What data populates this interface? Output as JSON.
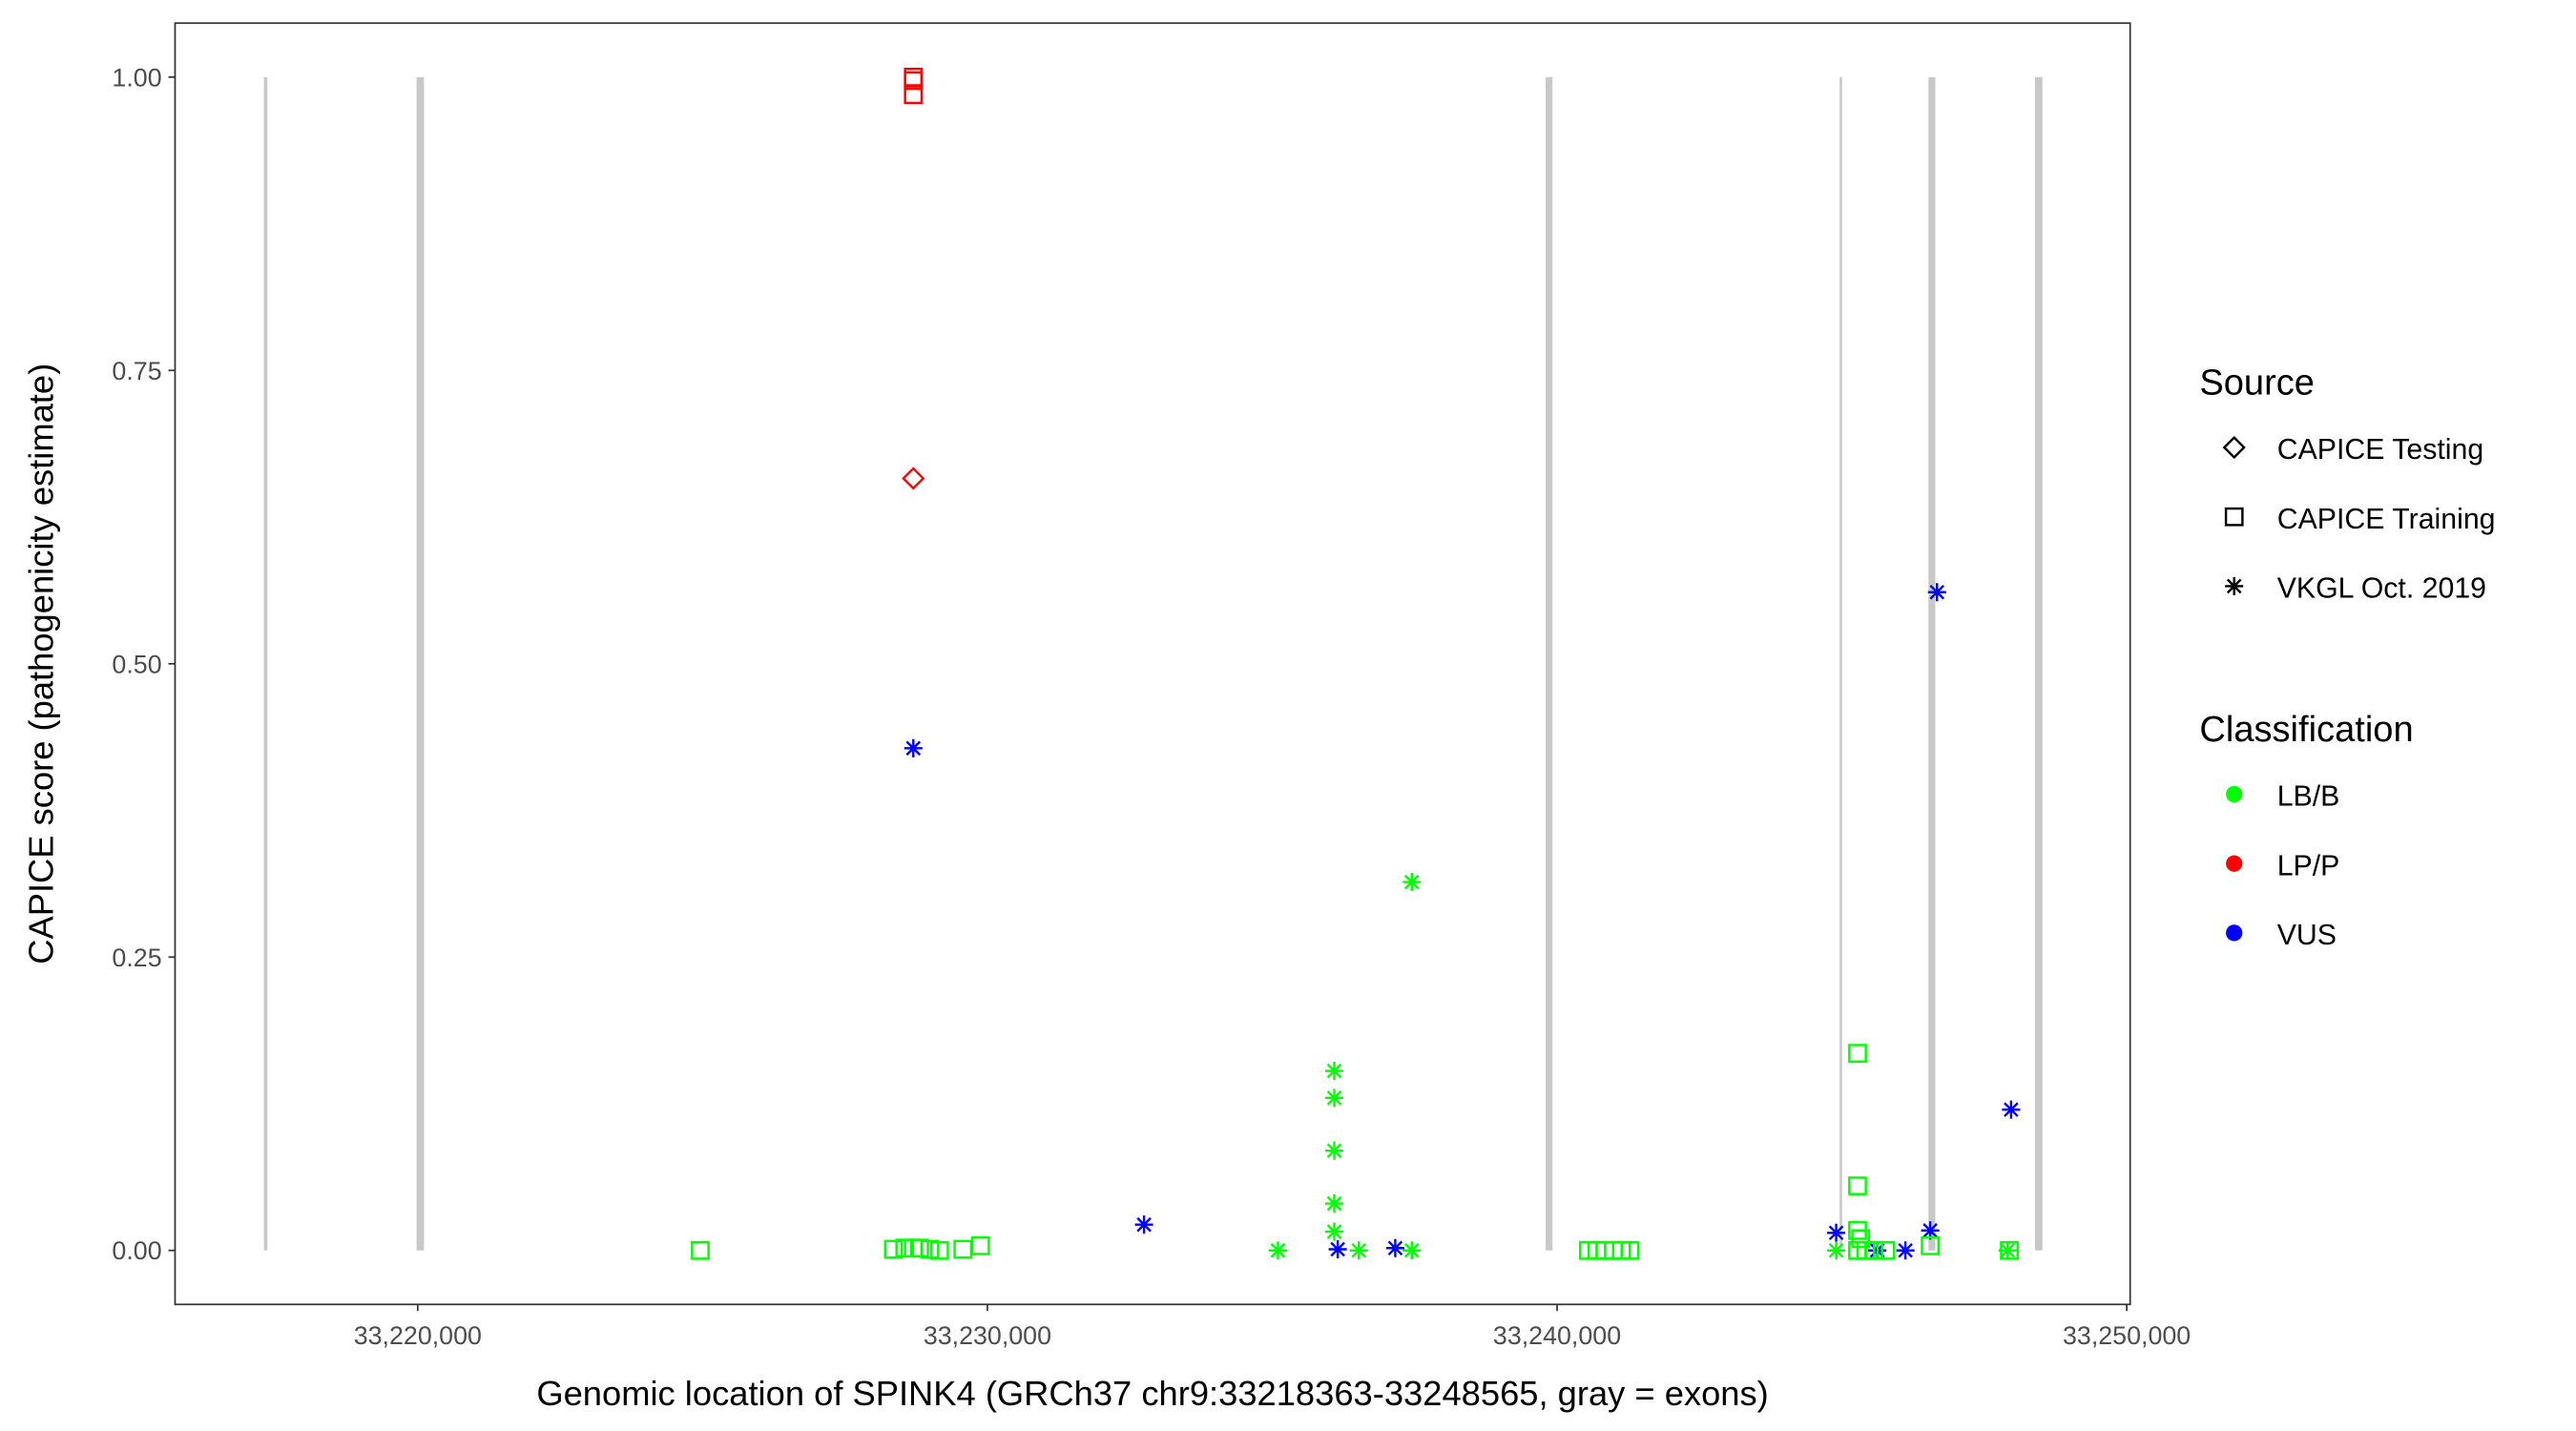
{
  "chart_data": {
    "type": "scatter",
    "xlabel": "Genomic location of SPINK4 (GRCh37 chr9:33218363-33248565, gray = exons)",
    "ylabel": "CAPICE score (pathogenicity estimate)",
    "xlim": [
      33215740,
      33250060
    ],
    "ylim": [
      -0.046,
      1.046
    ],
    "x_ticks": [
      33220000,
      33230000,
      33240000,
      33250000
    ],
    "x_tick_labels": [
      "33,220,000",
      "33,230,000",
      "33,240,000",
      "33,250,000"
    ],
    "y_ticks": [
      0,
      0.25,
      0.5,
      0.75,
      1.0
    ],
    "y_tick_labels": [
      "0.00",
      "0.25",
      "0.50",
      "0.75",
      "1.00"
    ],
    "grid": false,
    "exons": [
      [
        33217300,
        33217360
      ],
      [
        33219980,
        33220110
      ],
      [
        33239800,
        33239920
      ],
      [
        33244960,
        33244990
      ],
      [
        33246520,
        33246640
      ],
      [
        33248390,
        33248520
      ]
    ],
    "exon_color": "#c8c8c8",
    "legend": {
      "placement": "right",
      "source_title": "Source",
      "sources": [
        {
          "label": "CAPICE Testing",
          "shape": "diamond"
        },
        {
          "label": "CAPICE Training",
          "shape": "square"
        },
        {
          "label": "VKGL Oct. 2019",
          "shape": "asterisk"
        }
      ],
      "classification_title": "Classification",
      "classes": [
        {
          "label": "LB/B",
          "color": "#00ff00"
        },
        {
          "label": "LP/P",
          "color": "#ff0000"
        },
        {
          "label": "VUS",
          "color": "#0000ff"
        }
      ]
    },
    "groups": [
      {
        "source": "CAPICE Training",
        "classification": "LP/P",
        "points": [
          [
            33228700,
            1.0
          ],
          [
            33228700,
            0.997
          ],
          [
            33228700,
            0.985
          ]
        ]
      },
      {
        "source": "CAPICE Testing",
        "classification": "LP/P",
        "points": [
          [
            33228700,
            0.658
          ]
        ]
      },
      {
        "source": "VKGL Oct. 2019",
        "classification": "VUS",
        "points": [
          [
            33228700,
            0.428
          ],
          [
            33232750,
            0.022
          ],
          [
            33236150,
            0.001
          ],
          [
            33237160,
            0.002
          ],
          [
            33244900,
            0.015
          ],
          [
            33245620,
            0.0
          ],
          [
            33246115,
            0.0
          ],
          [
            33246550,
            0.017
          ],
          [
            33246670,
            0.561
          ],
          [
            33247970,
            0.12
          ]
        ]
      },
      {
        "source": "VKGL Oct. 2019",
        "classification": "LB/B",
        "points": [
          [
            33235100,
            0.0
          ],
          [
            33236090,
            0.153
          ],
          [
            33236090,
            0.13
          ],
          [
            33236090,
            0.085
          ],
          [
            33236090,
            0.04
          ],
          [
            33236090,
            0.016
          ],
          [
            33236520,
            0.0
          ],
          [
            33237450,
            0.314
          ],
          [
            33237450,
            0.0
          ],
          [
            33244900,
            0.0
          ],
          [
            33247910,
            0.0
          ]
        ]
      },
      {
        "source": "CAPICE Training",
        "classification": "LB/B",
        "points": [
          [
            33224960,
            0.0
          ],
          [
            33228350,
            0.001
          ],
          [
            33228550,
            0.002
          ],
          [
            33228700,
            0.002
          ],
          [
            33228810,
            0.002
          ],
          [
            33228990,
            0.001
          ],
          [
            33229160,
            0.0
          ],
          [
            33229570,
            0.001
          ],
          [
            33229880,
            0.004
          ],
          [
            33240550,
            0.0
          ],
          [
            33240700,
            0.0
          ],
          [
            33240840,
            0.0
          ],
          [
            33240990,
            0.0
          ],
          [
            33241130,
            0.0
          ],
          [
            33241280,
            0.0
          ],
          [
            33245275,
            0.168
          ],
          [
            33245275,
            0.055
          ],
          [
            33245275,
            0.017
          ],
          [
            33245330,
            0.01
          ],
          [
            33245275,
            0.0
          ],
          [
            33245420,
            0.0
          ],
          [
            33245560,
            0.0
          ],
          [
            33245770,
            0.0
          ],
          [
            33246550,
            0.004
          ],
          [
            33247940,
            0.0
          ]
        ]
      }
    ]
  }
}
